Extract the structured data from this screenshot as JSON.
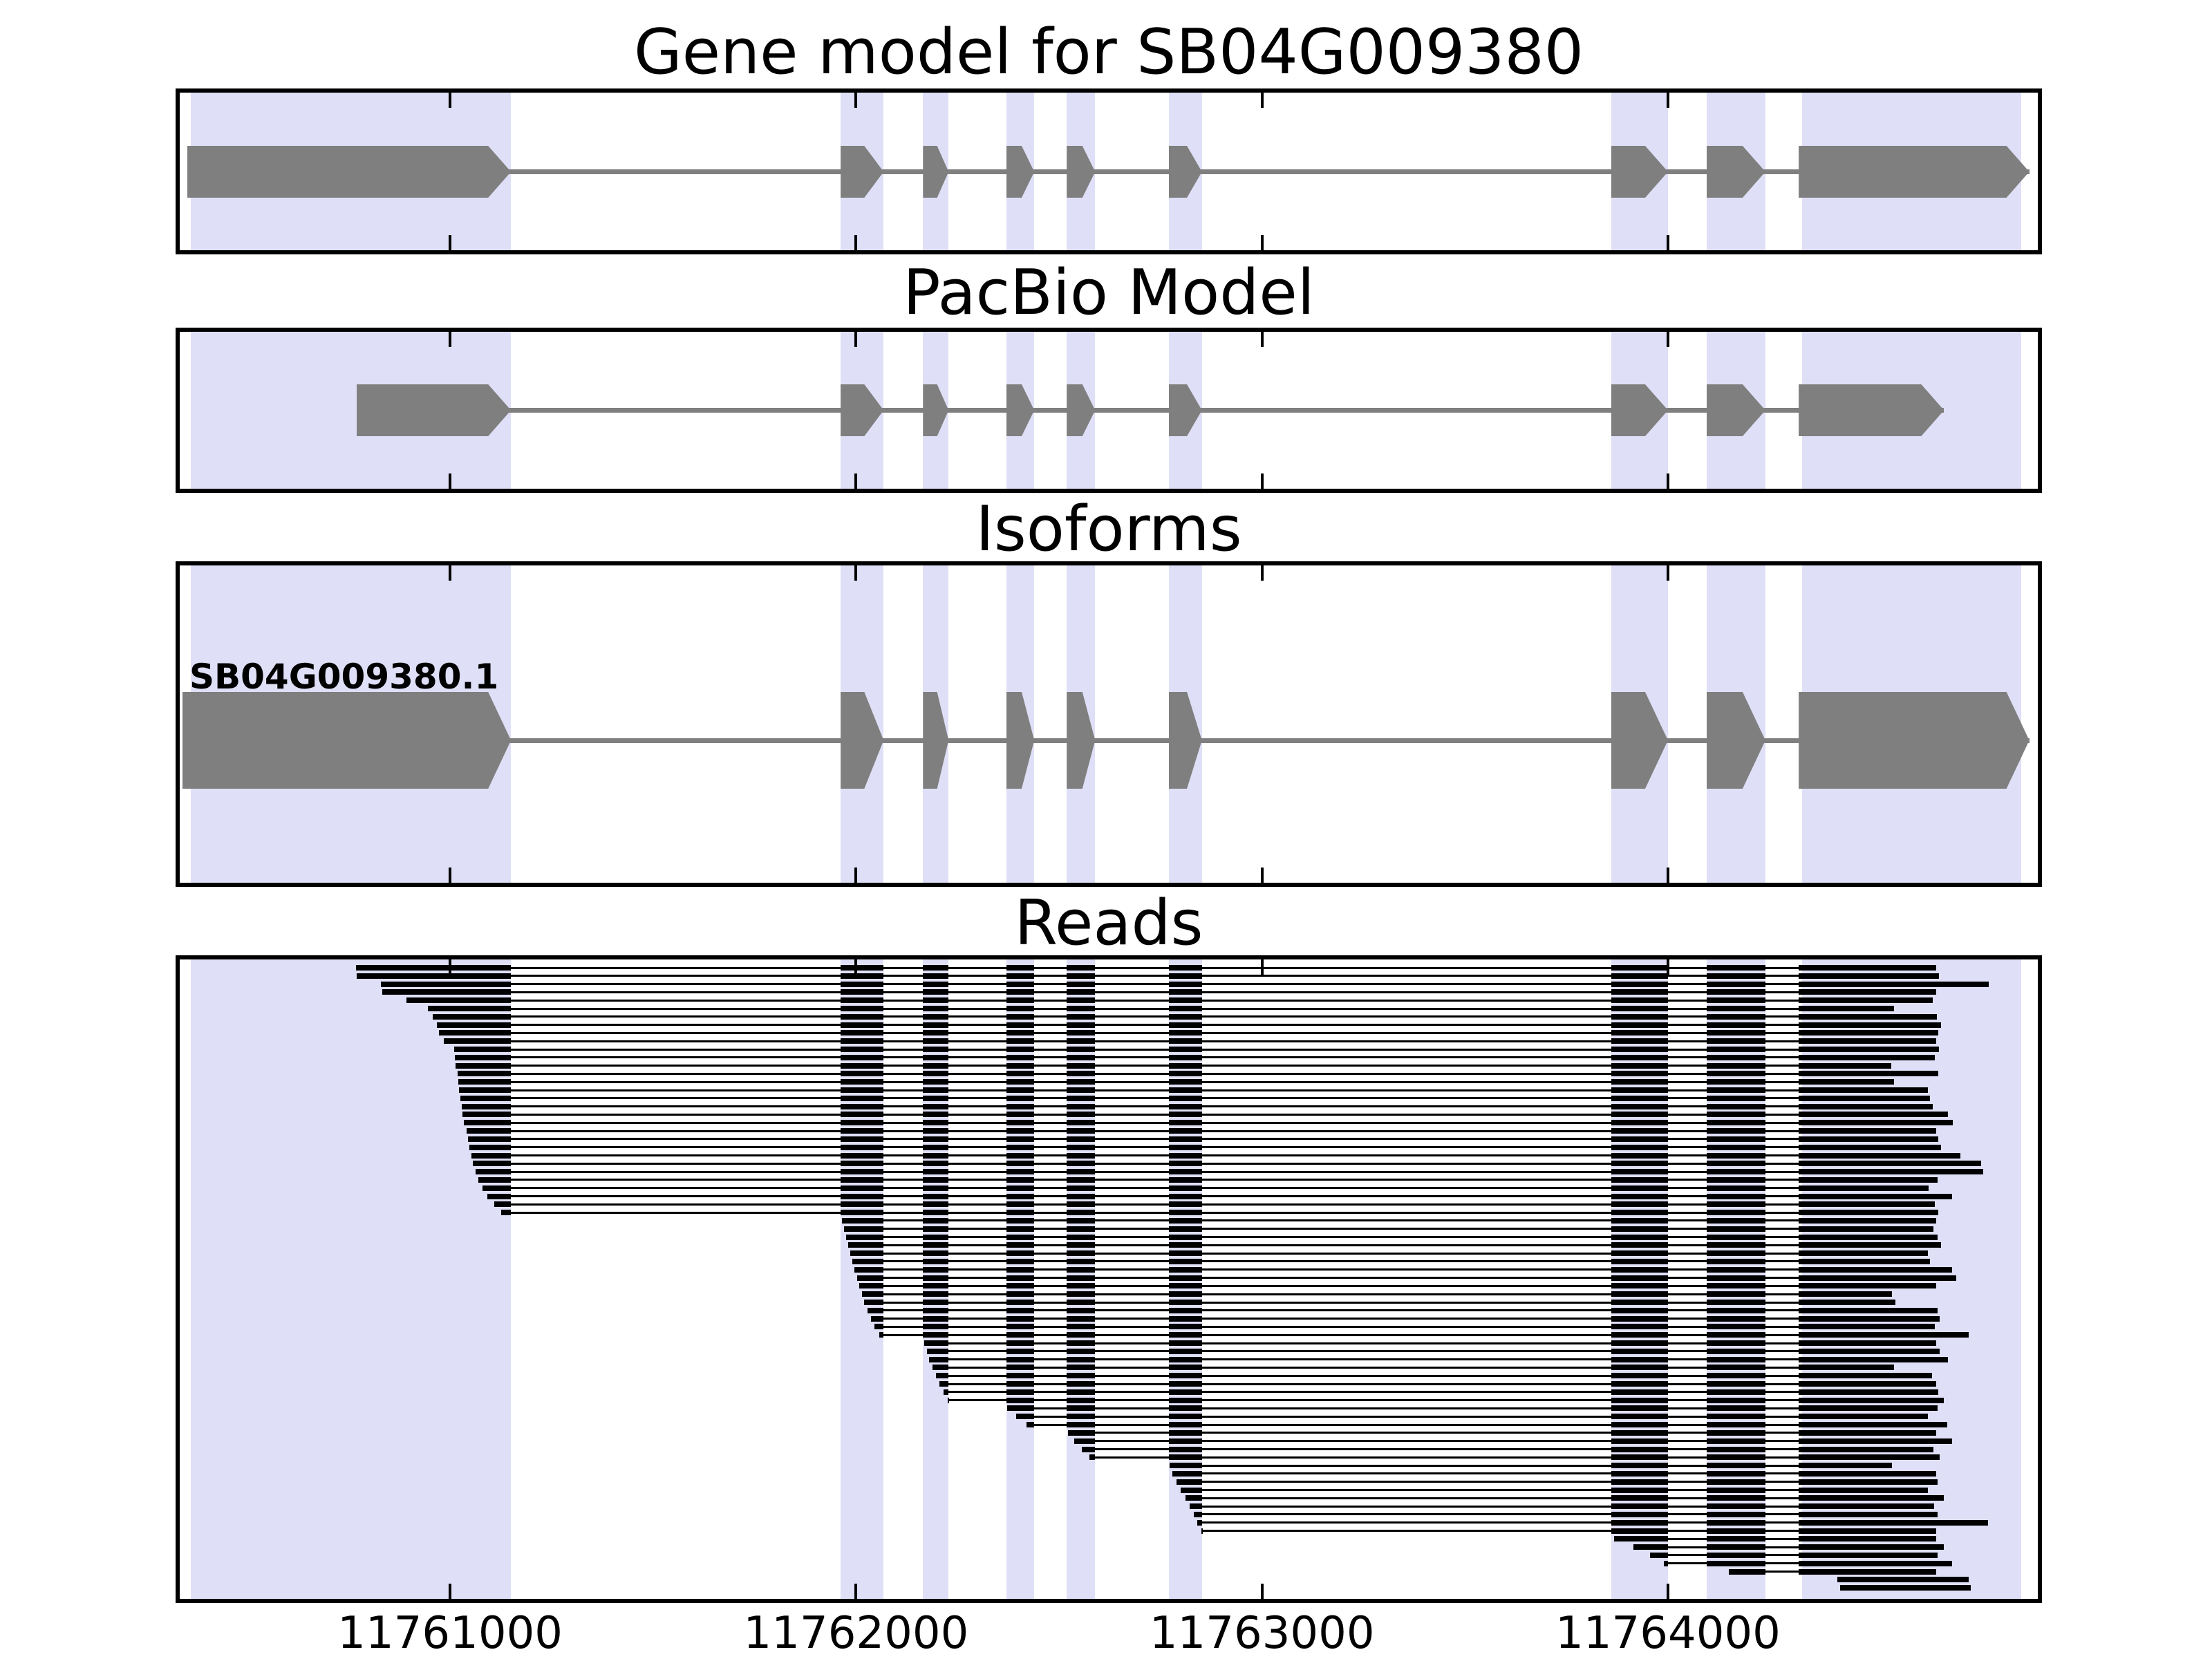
{
  "chart_data": {
    "type": "genome-browser",
    "title": "Gene model for SB04G009380",
    "gene_id": "SB04G009380",
    "x_axis": {
      "range": [
        11760334,
        11764911
      ],
      "ticks": [
        11761000,
        11762000,
        11763000,
        11764000
      ],
      "tick_labels": [
        "11761000",
        "11762000",
        "11763000",
        "11764000"
      ]
    },
    "highlight_regions": [
      [
        11760362,
        11761150
      ],
      [
        11761962,
        11762068
      ],
      [
        11762165,
        11762228
      ],
      [
        11762370,
        11762439
      ],
      [
        11762519,
        11762589
      ],
      [
        11762770,
        11762852
      ],
      [
        11763860,
        11764000
      ],
      [
        11764095,
        11764240
      ],
      [
        11764330,
        11764870
      ]
    ],
    "panels": [
      {
        "id": "gene_model",
        "title": "Gene model for SB04G009380",
        "kind": "model",
        "strand": "+",
        "exons": [
          [
            11760352,
            11761150
          ],
          [
            11761962,
            11762068
          ],
          [
            11762165,
            11762228
          ],
          [
            11762370,
            11762439
          ],
          [
            11762519,
            11762589
          ],
          [
            11762770,
            11762852
          ],
          [
            11763860,
            11764000
          ],
          [
            11764095,
            11764240
          ],
          [
            11764322,
            11764890
          ]
        ]
      },
      {
        "id": "pacbio_model",
        "title": "PacBio Model",
        "kind": "model",
        "strand": "+",
        "exons": [
          [
            11760770,
            11761150
          ],
          [
            11761962,
            11762068
          ],
          [
            11762165,
            11762228
          ],
          [
            11762370,
            11762439
          ],
          [
            11762519,
            11762589
          ],
          [
            11762770,
            11762852
          ],
          [
            11763860,
            11764000
          ],
          [
            11764095,
            11764240
          ],
          [
            11764322,
            11764680
          ]
        ]
      },
      {
        "id": "isoforms",
        "title": "Isoforms",
        "kind": "model",
        "strand": "+",
        "isoform_label": "SB04G009380.1",
        "exons": [
          [
            11760340,
            11761150
          ],
          [
            11761962,
            11762068
          ],
          [
            11762165,
            11762228
          ],
          [
            11762370,
            11762439
          ],
          [
            11762519,
            11762589
          ],
          [
            11762770,
            11762852
          ],
          [
            11763860,
            11764000
          ],
          [
            11764095,
            11764240
          ],
          [
            11764322,
            11764890
          ]
        ]
      },
      {
        "id": "reads",
        "title": "Reads",
        "kind": "reads",
        "reads": [
          [
            11760768,
            11764660
          ],
          [
            11760770,
            11764668
          ],
          [
            11760830,
            11764790
          ],
          [
            11760833,
            11764660
          ],
          [
            11760892,
            11764652
          ],
          [
            11760945,
            11764556
          ],
          [
            11760958,
            11764662
          ],
          [
            11760968,
            11764672
          ],
          [
            11760973,
            11764665
          ],
          [
            11760984,
            11764660
          ],
          [
            11761010,
            11764668
          ],
          [
            11761012,
            11764658
          ],
          [
            11761014,
            11764550
          ],
          [
            11761018,
            11764666
          ],
          [
            11761020,
            11764556
          ],
          [
            11761022,
            11764640
          ],
          [
            11761025,
            11764646
          ],
          [
            11761028,
            11764652
          ],
          [
            11761030,
            11764690
          ],
          [
            11761034,
            11764702
          ],
          [
            11761040,
            11764660
          ],
          [
            11761044,
            11764666
          ],
          [
            11761048,
            11764672
          ],
          [
            11761052,
            11764720
          ],
          [
            11761056,
            11764772
          ],
          [
            11761062,
            11764776
          ],
          [
            11761070,
            11764664
          ],
          [
            11761080,
            11764642
          ],
          [
            11761092,
            11764700
          ],
          [
            11761108,
            11764658
          ],
          [
            11761125,
            11764666
          ],
          [
            11761965,
            11764660
          ],
          [
            11761970,
            11764654
          ],
          [
            11761975,
            11764664
          ],
          [
            11761980,
            11764672
          ],
          [
            11761985,
            11764640
          ],
          [
            11761990,
            11764646
          ],
          [
            11761996,
            11764700
          ],
          [
            11762002,
            11764710
          ],
          [
            11762008,
            11764660
          ],
          [
            11762014,
            11764552
          ],
          [
            11762020,
            11764560
          ],
          [
            11762028,
            11764664
          ],
          [
            11762036,
            11764670
          ],
          [
            11762046,
            11764658
          ],
          [
            11762058,
            11764740
          ],
          [
            11762168,
            11764660
          ],
          [
            11762174,
            11764670
          ],
          [
            11762180,
            11764690
          ],
          [
            11762188,
            11764556
          ],
          [
            11762196,
            11764650
          ],
          [
            11762205,
            11764660
          ],
          [
            11762215,
            11764666
          ],
          [
            11762226,
            11764680
          ],
          [
            11762372,
            11764664
          ],
          [
            11762395,
            11764640
          ],
          [
            11762420,
            11764688
          ],
          [
            11762522,
            11764660
          ],
          [
            11762538,
            11764700
          ],
          [
            11762556,
            11764654
          ],
          [
            11762574,
            11764670
          ],
          [
            11762772,
            11764552
          ],
          [
            11762780,
            11764660
          ],
          [
            11762790,
            11764664
          ],
          [
            11762800,
            11764640
          ],
          [
            11762812,
            11764680
          ],
          [
            11762822,
            11764656
          ],
          [
            11762832,
            11764664
          ],
          [
            11762841,
            11764788
          ],
          [
            11762850,
            11764660
          ],
          [
            11763868,
            11764660
          ],
          [
            11763915,
            11764680
          ],
          [
            11763955,
            11764664
          ],
          [
            11763990,
            11764700
          ],
          [
            11764150,
            11764660
          ],
          [
            11764418,
            11764740
          ],
          [
            11764424,
            11764746
          ]
        ]
      }
    ],
    "colors": {
      "exon": "#7f7f7f",
      "intron": "#7f7f7f",
      "read": "#000000",
      "highlight": "#dfdff7",
      "border": "#000000",
      "background": "#ffffff",
      "text": "#000000"
    }
  }
}
